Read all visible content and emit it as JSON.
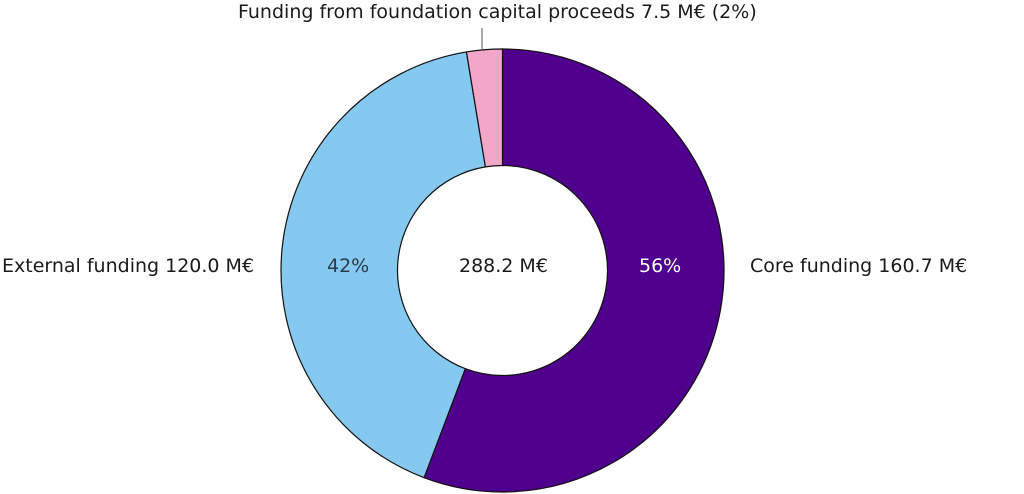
{
  "chart_data": {
    "type": "pie",
    "subtype": "donut",
    "title": "",
    "center_label": "288.2 M€",
    "total": 288.2,
    "unit": "M€",
    "slices": [
      {
        "name": "Core funding",
        "value": 160.7,
        "percent": 56,
        "label": "Core funding 160.7 M€",
        "pct_label": "56%",
        "color": "#4f008c"
      },
      {
        "name": "External funding",
        "value": 120.0,
        "percent": 42,
        "label": "External funding 120.0 M€",
        "pct_label": "42%",
        "color": "#85c8f0"
      },
      {
        "name": "Funding from foundation capital proceeds",
        "value": 7.5,
        "percent": 2,
        "label": "Funding from foundation capital proceeds 7.5 M€ (2%)",
        "pct_label": "",
        "color": "#f4a6c8"
      }
    ],
    "legend": "none"
  }
}
